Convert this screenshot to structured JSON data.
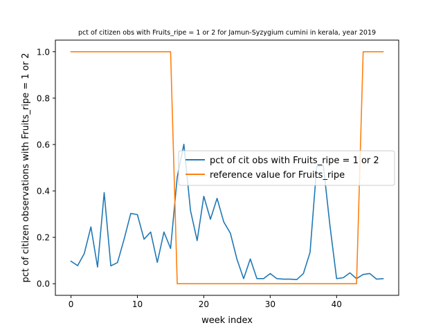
{
  "chart_data": {
    "type": "line",
    "title": "pct of citizen obs with Fruits_ripe = 1 or 2 for Jamun-Syzygium cumini in kerala, year 2019",
    "xlabel": "week index",
    "ylabel": "pct of citizen observations with Fruits_ripe = 1 or 2",
    "xlim": [
      -2.35,
      49.35
    ],
    "ylim": [
      -0.05,
      1.05
    ],
    "xticks": [
      0,
      10,
      20,
      30,
      40
    ],
    "yticks": [
      0.0,
      0.2,
      0.4,
      0.6,
      0.8,
      1.0
    ],
    "xtick_labels": [
      "0",
      "10",
      "20",
      "30",
      "40"
    ],
    "ytick_labels": [
      "0.0",
      "0.2",
      "0.4",
      "0.6",
      "0.8",
      "1.0"
    ],
    "grid": false,
    "legend_position": "center-right",
    "x": [
      0,
      1,
      2,
      3,
      4,
      5,
      6,
      7,
      8,
      9,
      10,
      11,
      12,
      13,
      14,
      15,
      16,
      17,
      18,
      19,
      20,
      21,
      22,
      23,
      24,
      25,
      26,
      27,
      28,
      29,
      30,
      31,
      32,
      33,
      34,
      35,
      36,
      37,
      38,
      39,
      40,
      41,
      42,
      43,
      44,
      45,
      46,
      47
    ],
    "series": [
      {
        "name": "pct of cit obs with Fruits_ripe = 1 or 2",
        "color": "#1f77b4",
        "values": [
          0.097,
          0.078,
          0.13,
          0.245,
          0.072,
          0.393,
          0.077,
          0.091,
          0.192,
          0.303,
          0.298,
          0.192,
          0.223,
          0.092,
          0.223,
          0.152,
          0.46,
          0.601,
          0.315,
          0.186,
          0.377,
          0.278,
          0.368,
          0.267,
          0.218,
          0.105,
          0.022,
          0.107,
          0.022,
          0.022,
          0.044,
          0.022,
          0.02,
          0.02,
          0.018,
          0.044,
          0.135,
          0.505,
          0.51,
          0.25,
          0.022,
          0.026,
          0.047,
          0.022,
          0.04,
          0.044,
          0.02,
          0.022
        ]
      },
      {
        "name": "reference value for Fruits_ripe",
        "color": "#ff7f0e",
        "values": [
          1,
          1,
          1,
          1,
          1,
          1,
          1,
          1,
          1,
          1,
          1,
          1,
          1,
          1,
          1,
          1,
          0,
          0,
          0,
          0,
          0,
          0,
          0,
          0,
          0,
          0,
          0,
          0,
          0,
          0,
          0,
          0,
          0,
          0,
          0,
          0,
          0,
          0,
          0,
          0,
          0,
          0,
          0,
          0,
          1,
          1,
          1,
          1
        ]
      }
    ]
  }
}
